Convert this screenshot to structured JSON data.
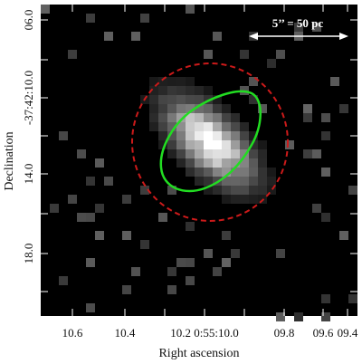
{
  "figure": {
    "xlabel": "Right ascension",
    "ylabel": "Declination",
    "x_ticks": [
      "10.6",
      "10.4",
      "10.2 0:55:10.0",
      "09.8",
      "09.6",
      "09.4"
    ],
    "y_ticks": [
      "06.0",
      "-37:42:10.0",
      "14.0",
      "18.0"
    ],
    "scale_bar_label": "5’’ = 50 pc",
    "colors": {
      "background": "#000000",
      "contour": "#22dd22",
      "aperture": "#cc1a1a",
      "scale_bar": "#ffffff"
    },
    "overlays": {
      "aperture": "red-dashed-circle",
      "contour": "green-solid-contour"
    }
  }
}
